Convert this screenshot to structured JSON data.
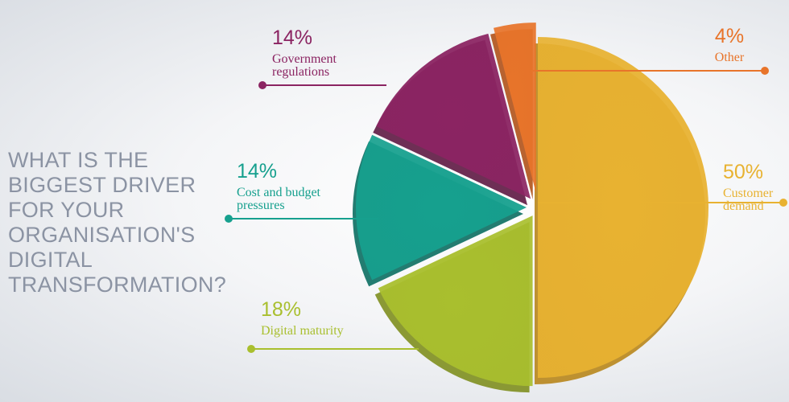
{
  "question": "WHAT IS THE\nBIGGEST DRIVER\nFOR YOUR\nORGANISATION'S\nDIGITAL\nTRANSFORMATION?",
  "chart_data": {
    "type": "pie",
    "title": "WHAT IS THE BIGGEST DRIVER FOR YOUR ORGANISATION'S DIGITAL TRANSFORMATION?",
    "slices": [
      {
        "label": "Customer demand",
        "value": 50,
        "value_label": "50%",
        "color": "#e8b231",
        "dark": "#b8861c",
        "label_lines": [
          "Customer",
          "demand"
        ]
      },
      {
        "label": "Digital maturity",
        "value": 18,
        "value_label": "18%",
        "color": "#a9bf2e",
        "dark": "#7f8f1f",
        "label_lines": [
          "Digital maturity"
        ]
      },
      {
        "label": "Cost and budget pressures",
        "value": 14,
        "value_label": "14%",
        "color": "#16a08e",
        "dark": "#0b6e62",
        "label_lines": [
          "Cost and budget",
          "pressures"
        ]
      },
      {
        "label": "Government regulations",
        "value": 14,
        "value_label": "14%",
        "color": "#8b2462",
        "dark": "#5e1843",
        "label_lines": [
          "Government",
          "regulations"
        ]
      },
      {
        "label": "Other",
        "value": 4,
        "value_label": "4%",
        "color": "#e8742a",
        "dark": "#b0521a",
        "label_lines": [
          "Other"
        ]
      }
    ]
  }
}
